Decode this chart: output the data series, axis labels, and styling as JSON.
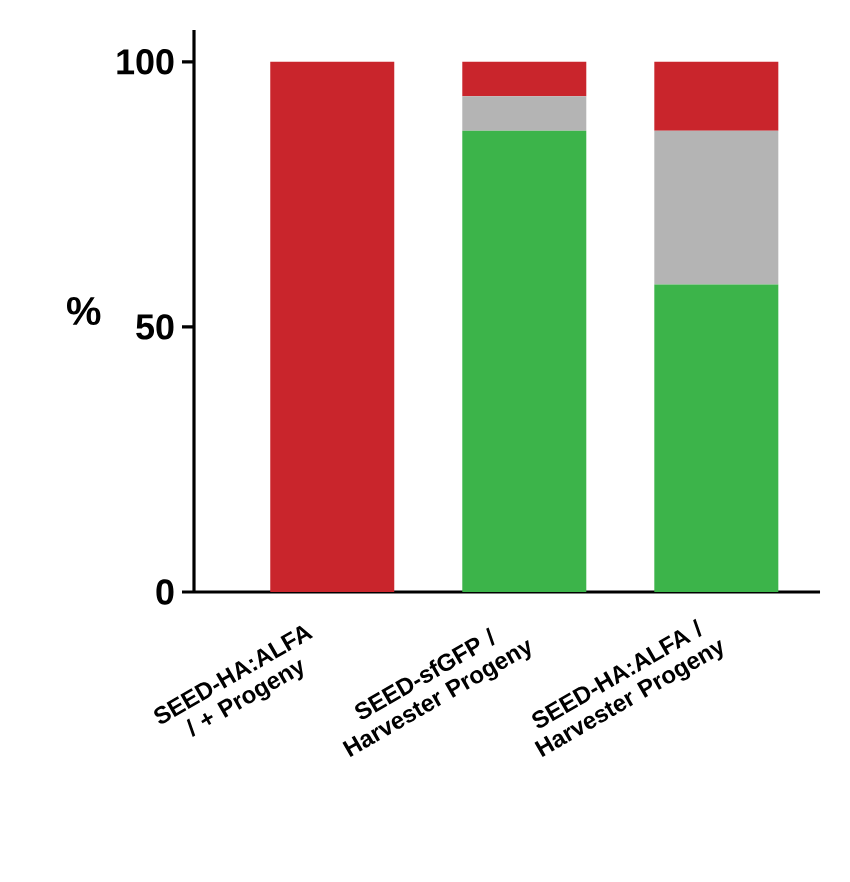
{
  "chart_data": {
    "type": "bar",
    "stacked": true,
    "ylabel": "%",
    "categories": [
      "SEED-HA:ALFA  / + Progeny",
      "SEED-sfGFP / Harvester Progeny",
      "SEED-HA:ALFA / Harvester Progeny"
    ],
    "series": [
      {
        "color": "#3cb44a",
        "values": [
          0,
          87,
          58
        ]
      },
      {
        "color": "#b4b4b4",
        "values": [
          0,
          6.5,
          29
        ]
      },
      {
        "color": "#c9252c",
        "values": [
          100,
          6.5,
          13
        ]
      }
    ],
    "ylim": [
      0,
      106
    ],
    "yticks": [
      0,
      50,
      100
    ]
  }
}
